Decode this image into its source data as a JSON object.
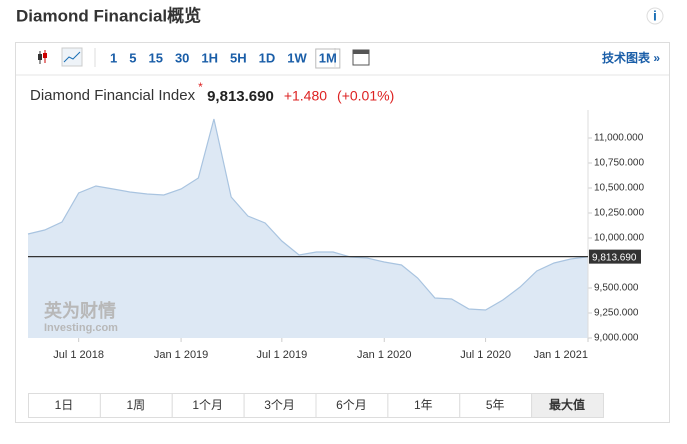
{
  "title": "Diamond Financial概览",
  "info_icon": "i",
  "toolbar": {
    "buttons": [
      "1",
      "5",
      "15",
      "30",
      "1H",
      "5H",
      "1D",
      "1W",
      "1M"
    ],
    "selected": "1M",
    "link": "技术图表 »"
  },
  "header": {
    "name": "Diamond Financial Index",
    "price": "9,813.690",
    "change": "+1.480",
    "change_pct": "(+0.01%)"
  },
  "watermark": {
    "line1": "英为财情",
    "line2": "Investing.com"
  },
  "chart_data": {
    "type": "area",
    "color": "#a9c4e0",
    "fill": "#dde8f4",
    "x": [
      "2018-04-01",
      "2018-05-01",
      "2018-06-01",
      "2018-07-01",
      "2018-08-01",
      "2018-09-01",
      "2018-10-01",
      "2018-11-01",
      "2018-12-01",
      "2019-01-01",
      "2019-02-01",
      "2019-03-01",
      "2019-04-01",
      "2019-05-01",
      "2019-06-01",
      "2019-07-01",
      "2019-08-01",
      "2019-09-01",
      "2019-10-01",
      "2019-11-01",
      "2019-12-01",
      "2020-01-01",
      "2020-02-01",
      "2020-03-01",
      "2020-04-01",
      "2020-05-01",
      "2020-06-01",
      "2020-07-01",
      "2020-08-01",
      "2020-09-01",
      "2020-10-01",
      "2020-11-01",
      "2020-12-01",
      "2021-01-01"
    ],
    "values": [
      10040,
      10080,
      10160,
      10450,
      10520,
      10490,
      10460,
      10440,
      10430,
      10490,
      10600,
      11190,
      10410,
      10220,
      10150,
      9970,
      9830,
      9860,
      9860,
      9810,
      9800,
      9760,
      9730,
      9600,
      9400,
      9390,
      9290,
      9280,
      9380,
      9510,
      9670,
      9750,
      9790,
      9813.69
    ],
    "xlim": [
      "2018-04-01",
      "2021-01-01"
    ],
    "xticks": [
      {
        "value": "2018-07-01",
        "label": "Jul 1 2018"
      },
      {
        "value": "2019-01-01",
        "label": "Jan 1 2019"
      },
      {
        "value": "2019-07-01",
        "label": "Jul 1 2019"
      },
      {
        "value": "2020-01-01",
        "label": "Jan 1 2020"
      },
      {
        "value": "2020-07-01",
        "label": "Jul 1 2020"
      },
      {
        "value": "2021-01-01",
        "label": "Jan 1 2021"
      }
    ],
    "ylim": [
      9000,
      11280
    ],
    "yticks": [
      {
        "value": 9000,
        "label": "9,000.000"
      },
      {
        "value": 9250,
        "label": "9,250.000"
      },
      {
        "value": 9500,
        "label": "9,500.000"
      },
      {
        "value": 10000,
        "label": "10,000.000"
      },
      {
        "value": 10250,
        "label": "10,250.000"
      },
      {
        "value": 10500,
        "label": "10,500.000"
      },
      {
        "value": 10750,
        "label": "10,750.000"
      },
      {
        "value": 11000,
        "label": "11,000.000"
      }
    ],
    "current": {
      "value": 9813.69,
      "label": "9,813.690"
    }
  },
  "range_tabs": {
    "items": [
      "1日",
      "1周",
      "1个月",
      "3个月",
      "6个月",
      "1年",
      "5年",
      "最大值"
    ],
    "selected": "最大值"
  }
}
